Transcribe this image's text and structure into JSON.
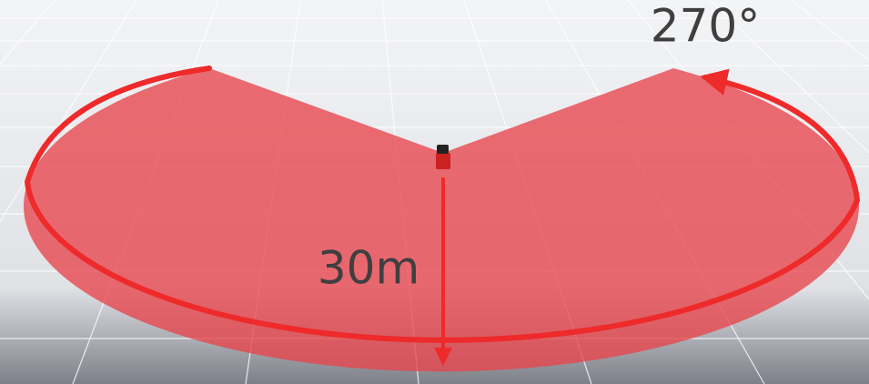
{
  "labels": {
    "angle": "270°",
    "range": "30m"
  }
}
